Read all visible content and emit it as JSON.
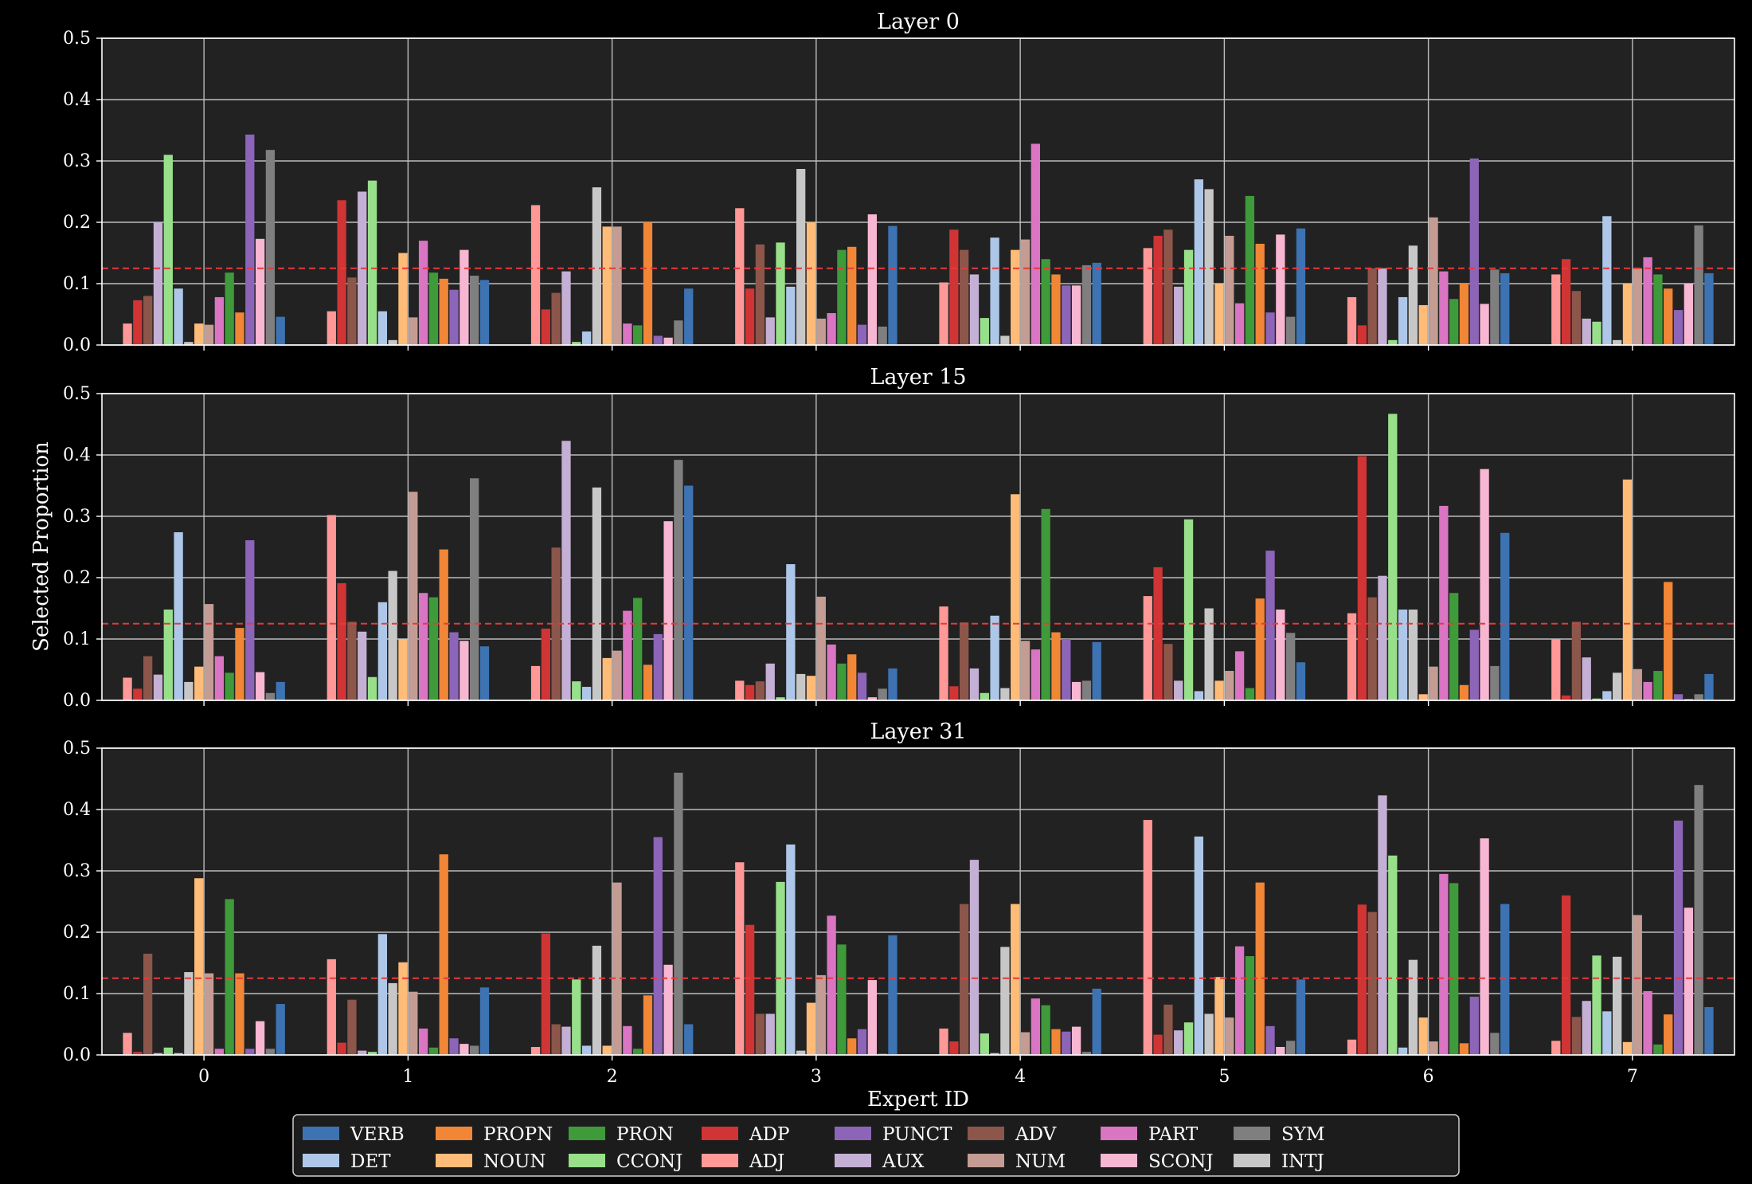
{
  "chart_data": {
    "type": "bar",
    "ylabel": "Selected Proportion",
    "xlabel": "Expert ID",
    "categories": [
      "0",
      "1",
      "2",
      "3",
      "4",
      "5",
      "6",
      "7"
    ],
    "ylim": [
      0,
      0.5
    ],
    "yticks": [
      "0.0",
      "0.1",
      "0.2",
      "0.3",
      "0.4",
      "0.5"
    ],
    "grid": true,
    "reference_line": {
      "y": 0.125,
      "style": "dashed",
      "color": "#e8393a"
    },
    "legend_position": "bottom-center",
    "bar_order": [
      "ADJ",
      "ADP",
      "ADV",
      "AUX",
      "CCONJ",
      "DET",
      "INTJ",
      "NOUN",
      "NUM",
      "PART",
      "PRON",
      "PROPN",
      "PUNCT",
      "SCONJ",
      "SYM",
      "VERB"
    ],
    "series_colors": {
      "VERB": "#3d73b2",
      "DET": "#aec7e8",
      "PROPN": "#f08636",
      "NOUN": "#ffbb78",
      "PRON": "#3f9a3a",
      "CCONJ": "#98df8a",
      "ADP": "#d03434",
      "ADJ": "#ff9896",
      "PUNCT": "#8c65b8",
      "AUX": "#c5b0d5",
      "ADV": "#8c564b",
      "NUM": "#c49c94",
      "PART": "#d975c2",
      "SCONJ": "#f7b6d2",
      "SYM": "#7f7f7f",
      "INTJ": "#c7c7c7"
    },
    "legend": {
      "rows": [
        [
          "VERB",
          "PROPN",
          "PRON",
          "ADP",
          "PUNCT",
          "ADV",
          "PART",
          "SYM"
        ],
        [
          "DET",
          "NOUN",
          "CCONJ",
          "ADJ",
          "AUX",
          "NUM",
          "SCONJ",
          "INTJ"
        ]
      ]
    },
    "panels": [
      {
        "title": "Layer 0",
        "values": {
          "ADJ": [
            0.035,
            0.055,
            0.228,
            0.223,
            0.102,
            0.158,
            0.078,
            0.115
          ],
          "ADP": [
            0.073,
            0.236,
            0.058,
            0.092,
            0.188,
            0.178,
            0.032,
            0.14
          ],
          "ADV": [
            0.08,
            0.11,
            0.085,
            0.164,
            0.155,
            0.188,
            0.125,
            0.088
          ],
          "AUX": [
            0.2,
            0.25,
            0.12,
            0.045,
            0.115,
            0.095,
            0.125,
            0.043
          ],
          "CCONJ": [
            0.31,
            0.268,
            0.005,
            0.167,
            0.044,
            0.155,
            0.008,
            0.038
          ],
          "DET": [
            0.092,
            0.055,
            0.022,
            0.095,
            0.175,
            0.27,
            0.078,
            0.21
          ],
          "INTJ": [
            0.005,
            0.008,
            0.257,
            0.287,
            0.015,
            0.254,
            0.162,
            0.008
          ],
          "NOUN": [
            0.035,
            0.15,
            0.193,
            0.2,
            0.155,
            0.1,
            0.065,
            0.1
          ],
          "NUM": [
            0.033,
            0.045,
            0.193,
            0.043,
            0.172,
            0.178,
            0.208,
            0.125
          ],
          "PART": [
            0.078,
            0.17,
            0.035,
            0.052,
            0.328,
            0.068,
            0.12,
            0.143
          ],
          "PRON": [
            0.118,
            0.118,
            0.032,
            0.155,
            0.14,
            0.243,
            0.075,
            0.115
          ],
          "PROPN": [
            0.053,
            0.108,
            0.2,
            0.16,
            0.115,
            0.165,
            0.1,
            0.092
          ],
          "PUNCT": [
            0.343,
            0.09,
            0.015,
            0.033,
            0.097,
            0.053,
            0.304,
            0.057
          ],
          "SCONJ": [
            0.173,
            0.155,
            0.012,
            0.213,
            0.097,
            0.18,
            0.067,
            0.1
          ],
          "SYM": [
            0.318,
            0.113,
            0.04,
            0.03,
            0.13,
            0.046,
            0.123,
            0.195
          ],
          "VERB": [
            0.046,
            0.106,
            0.092,
            0.194,
            0.134,
            0.19,
            0.117,
            0.117
          ]
        }
      },
      {
        "title": "Layer 15",
        "values": {
          "ADJ": [
            0.037,
            0.302,
            0.056,
            0.032,
            0.153,
            0.17,
            0.142,
            0.1
          ],
          "ADP": [
            0.019,
            0.191,
            0.117,
            0.025,
            0.023,
            0.217,
            0.398,
            0.008
          ],
          "ADV": [
            0.072,
            0.128,
            0.249,
            0.031,
            0.127,
            0.092,
            0.168,
            0.128
          ],
          "AUX": [
            0.042,
            0.112,
            0.423,
            0.06,
            0.052,
            0.032,
            0.203,
            0.07
          ],
          "CCONJ": [
            0.148,
            0.038,
            0.031,
            0.005,
            0.012,
            0.295,
            0.467,
            0.003
          ],
          "DET": [
            0.274,
            0.16,
            0.022,
            0.222,
            0.138,
            0.015,
            0.148,
            0.015
          ],
          "INTJ": [
            0.03,
            0.211,
            0.347,
            0.043,
            0.02,
            0.15,
            0.148,
            0.045
          ],
          "NOUN": [
            0.055,
            0.1,
            0.069,
            0.04,
            0.336,
            0.032,
            0.01,
            0.36
          ],
          "NUM": [
            0.157,
            0.34,
            0.081,
            0.169,
            0.097,
            0.048,
            0.055,
            0.051
          ],
          "PART": [
            0.072,
            0.175,
            0.146,
            0.091,
            0.083,
            0.08,
            0.317,
            0.03
          ],
          "PRON": [
            0.045,
            0.168,
            0.167,
            0.06,
            0.312,
            0.02,
            0.175,
            0.048
          ],
          "PROPN": [
            0.118,
            0.246,
            0.058,
            0.075,
            0.111,
            0.166,
            0.025,
            0.193
          ],
          "PUNCT": [
            0.261,
            0.111,
            0.108,
            0.045,
            0.1,
            0.244,
            0.115,
            0.01
          ],
          "SCONJ": [
            0.046,
            0.097,
            0.292,
            0.005,
            0.03,
            0.148,
            0.377,
            0.002
          ],
          "SYM": [
            0.012,
            0.362,
            0.392,
            0.019,
            0.032,
            0.11,
            0.056,
            0.01
          ],
          "VERB": [
            0.03,
            0.088,
            0.35,
            0.052,
            0.095,
            0.062,
            0.273,
            0.043
          ]
        }
      },
      {
        "title": "Layer 31",
        "values": {
          "ADJ": [
            0.036,
            0.156,
            0.013,
            0.314,
            0.043,
            0.383,
            0.025,
            0.023
          ],
          "ADP": [
            0.005,
            0.02,
            0.198,
            0.212,
            0.022,
            0.033,
            0.245,
            0.26
          ],
          "ADV": [
            0.165,
            0.09,
            0.05,
            0.067,
            0.246,
            0.082,
            0.233,
            0.062
          ],
          "AUX": [
            0.003,
            0.007,
            0.046,
            0.067,
            0.318,
            0.04,
            0.423,
            0.088
          ],
          "CCONJ": [
            0.012,
            0.005,
            0.123,
            0.282,
            0.035,
            0.053,
            0.325,
            0.162
          ],
          "DET": [
            0.003,
            0.197,
            0.015,
            0.343,
            0.003,
            0.356,
            0.012,
            0.071
          ],
          "INTJ": [
            0.135,
            0.117,
            0.178,
            0.007,
            0.176,
            0.067,
            0.155,
            0.16
          ],
          "NOUN": [
            0.288,
            0.151,
            0.015,
            0.085,
            0.246,
            0.127,
            0.061,
            0.021
          ],
          "NUM": [
            0.133,
            0.103,
            0.281,
            0.13,
            0.037,
            0.061,
            0.022,
            0.228
          ],
          "PART": [
            0.01,
            0.043,
            0.047,
            0.227,
            0.092,
            0.177,
            0.295,
            0.104
          ],
          "PRON": [
            0.254,
            0.012,
            0.01,
            0.18,
            0.081,
            0.161,
            0.28,
            0.017
          ],
          "PROPN": [
            0.133,
            0.327,
            0.097,
            0.027,
            0.042,
            0.281,
            0.019,
            0.066
          ],
          "PUNCT": [
            0.01,
            0.027,
            0.355,
            0.042,
            0.038,
            0.047,
            0.095,
            0.382
          ],
          "SCONJ": [
            0.055,
            0.018,
            0.147,
            0.122,
            0.046,
            0.013,
            0.353,
            0.24
          ],
          "SYM": [
            0.01,
            0.015,
            0.46,
            0.002,
            0.005,
            0.023,
            0.036,
            0.44
          ],
          "VERB": [
            0.083,
            0.11,
            0.05,
            0.195,
            0.108,
            0.123,
            0.246,
            0.078
          ]
        }
      }
    ]
  }
}
